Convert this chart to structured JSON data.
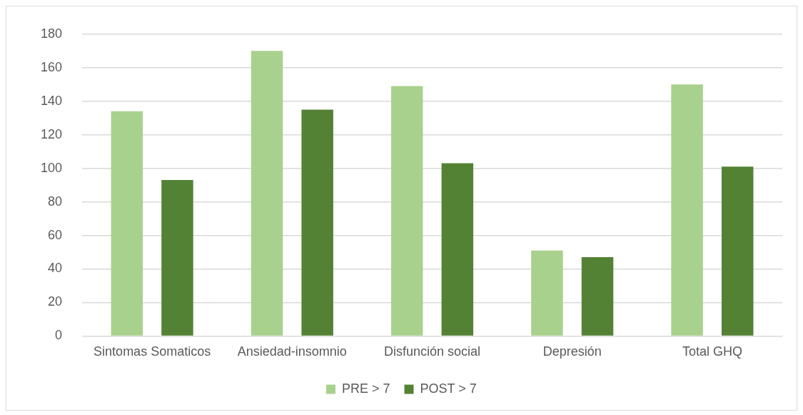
{
  "chart_data": {
    "type": "bar",
    "categories": [
      "Sintomas Somaticos",
      "Ansiedad-insomnio",
      "Disfunción social",
      "Depresión",
      "Total GHQ"
    ],
    "series": [
      {
        "name": "PRE > 7",
        "color": "#a9d18e",
        "values": [
          134,
          170,
          149,
          51,
          150
        ]
      },
      {
        "name": "POST > 7",
        "color": "#548235",
        "values": [
          93,
          135,
          103,
          47,
          101
        ]
      }
    ],
    "ylim": [
      0,
      180
    ],
    "yticks": [
      0,
      20,
      40,
      60,
      80,
      100,
      120,
      140,
      160,
      180
    ],
    "grid": "y",
    "legend": "bottom"
  }
}
